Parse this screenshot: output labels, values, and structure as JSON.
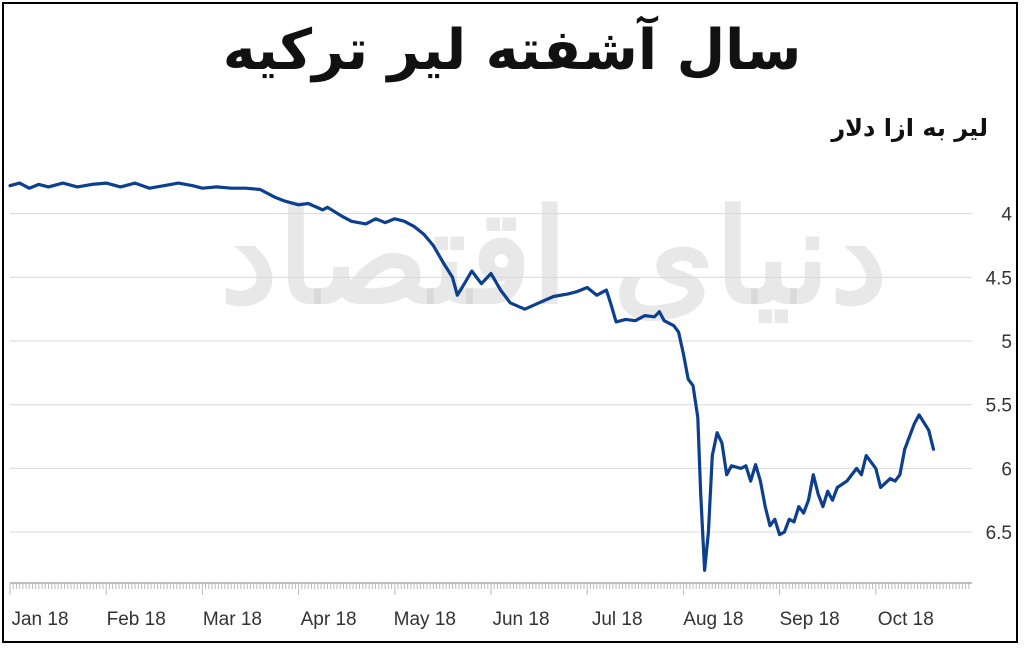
{
  "chart_data": {
    "type": "line",
    "title": "سال آشفته لیر ترکیه",
    "ylabel": "لیر به ازا دلار",
    "xlabel": "",
    "y_inverted": true,
    "ylim": [
      3.5,
      6.9
    ],
    "y_ticks": [
      {
        "value": 4,
        "label": "4"
      },
      {
        "value": 4.5,
        "label": "4.5"
      },
      {
        "value": 5,
        "label": "5"
      },
      {
        "value": 5.5,
        "label": "5.5"
      },
      {
        "value": 6,
        "label": "6"
      },
      {
        "value": 6.5,
        "label": "6.5"
      }
    ],
    "x_ticks": [
      "Jan 18",
      "Feb 18",
      "Mar 18",
      "Apr 18",
      "May 18",
      "Jun 18",
      "Jul 18",
      "Aug 18",
      "Sep 18",
      "Oct 18"
    ],
    "grid": true,
    "line_color": "#0d3f8f",
    "series": [
      {
        "values": [
          [
            0,
            3.78
          ],
          [
            0.1,
            3.76
          ],
          [
            0.2,
            3.8
          ],
          [
            0.3,
            3.77
          ],
          [
            0.4,
            3.79
          ],
          [
            0.55,
            3.76
          ],
          [
            0.7,
            3.79
          ],
          [
            0.85,
            3.77
          ],
          [
            1.0,
            3.76
          ],
          [
            1.15,
            3.79
          ],
          [
            1.3,
            3.76
          ],
          [
            1.45,
            3.8
          ],
          [
            1.6,
            3.78
          ],
          [
            1.75,
            3.76
          ],
          [
            1.9,
            3.78
          ],
          [
            2.0,
            3.8
          ],
          [
            2.15,
            3.79
          ],
          [
            2.3,
            3.8
          ],
          [
            2.45,
            3.8
          ],
          [
            2.6,
            3.81
          ],
          [
            2.75,
            3.87
          ],
          [
            2.85,
            3.9
          ],
          [
            3.0,
            3.93
          ],
          [
            3.1,
            3.92
          ],
          [
            3.25,
            3.97
          ],
          [
            3.3,
            3.95
          ],
          [
            3.45,
            4.02
          ],
          [
            3.55,
            4.06
          ],
          [
            3.7,
            4.08
          ],
          [
            3.8,
            4.04
          ],
          [
            3.9,
            4.07
          ],
          [
            4.0,
            4.04
          ],
          [
            4.1,
            4.06
          ],
          [
            4.2,
            4.1
          ],
          [
            4.3,
            4.16
          ],
          [
            4.4,
            4.25
          ],
          [
            4.5,
            4.38
          ],
          [
            4.6,
            4.5
          ],
          [
            4.65,
            4.64
          ],
          [
            4.7,
            4.58
          ],
          [
            4.8,
            4.45
          ],
          [
            4.9,
            4.55
          ],
          [
            5.0,
            4.47
          ],
          [
            5.1,
            4.6
          ],
          [
            5.2,
            4.7
          ],
          [
            5.35,
            4.75
          ],
          [
            5.5,
            4.7
          ],
          [
            5.65,
            4.65
          ],
          [
            5.8,
            4.63
          ],
          [
            5.9,
            4.61
          ],
          [
            6.0,
            4.58
          ],
          [
            6.1,
            4.64
          ],
          [
            6.2,
            4.6
          ],
          [
            6.25,
            4.72
          ],
          [
            6.3,
            4.85
          ],
          [
            6.4,
            4.83
          ],
          [
            6.5,
            4.84
          ],
          [
            6.6,
            4.8
          ],
          [
            6.7,
            4.81
          ],
          [
            6.75,
            4.77
          ],
          [
            6.8,
            4.84
          ],
          [
            6.9,
            4.88
          ],
          [
            6.95,
            4.93
          ],
          [
            7.0,
            5.1
          ],
          [
            7.05,
            5.3
          ],
          [
            7.1,
            5.35
          ],
          [
            7.15,
            5.6
          ],
          [
            7.18,
            6.2
          ],
          [
            7.22,
            6.8
          ],
          [
            7.26,
            6.5
          ],
          [
            7.3,
            5.9
          ],
          [
            7.35,
            5.72
          ],
          [
            7.4,
            5.8
          ],
          [
            7.45,
            6.05
          ],
          [
            7.5,
            5.98
          ],
          [
            7.6,
            6.0
          ],
          [
            7.65,
            5.98
          ],
          [
            7.7,
            6.1
          ],
          [
            7.75,
            5.97
          ],
          [
            7.8,
            6.1
          ],
          [
            7.85,
            6.3
          ],
          [
            7.9,
            6.45
          ],
          [
            7.95,
            6.4
          ],
          [
            8.0,
            6.52
          ],
          [
            8.05,
            6.5
          ],
          [
            8.1,
            6.4
          ],
          [
            8.15,
            6.42
          ],
          [
            8.2,
            6.3
          ],
          [
            8.25,
            6.35
          ],
          [
            8.3,
            6.25
          ],
          [
            8.35,
            6.05
          ],
          [
            8.4,
            6.2
          ],
          [
            8.45,
            6.3
          ],
          [
            8.5,
            6.18
          ],
          [
            8.55,
            6.25
          ],
          [
            8.6,
            6.15
          ],
          [
            8.7,
            6.1
          ],
          [
            8.8,
            6.0
          ],
          [
            8.85,
            6.05
          ],
          [
            8.9,
            5.9
          ],
          [
            9.0,
            6.0
          ],
          [
            9.05,
            6.15
          ],
          [
            9.15,
            6.08
          ],
          [
            9.2,
            6.1
          ],
          [
            9.25,
            6.05
          ],
          [
            9.3,
            5.85
          ],
          [
            9.4,
            5.65
          ],
          [
            9.45,
            5.58
          ],
          [
            9.55,
            5.7
          ],
          [
            9.6,
            5.85
          ]
        ]
      }
    ]
  },
  "watermark": "دنیای اقتصاد"
}
